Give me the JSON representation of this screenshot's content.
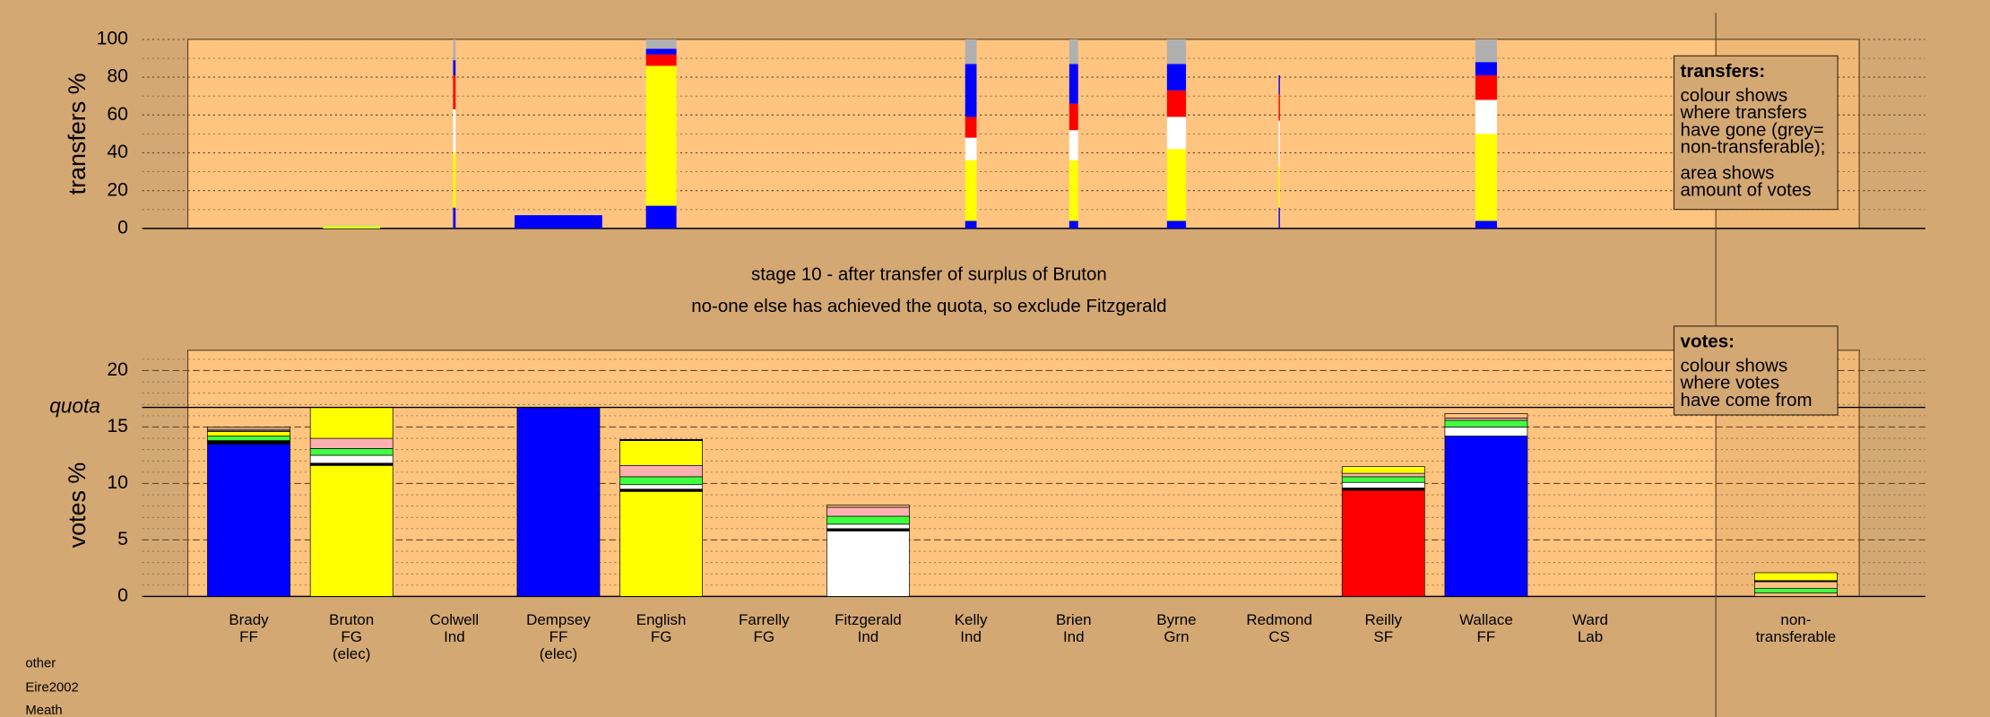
{
  "stage_title": "stage 10 - after transfer of surplus of Bruton",
  "stage_note": "no-one else has achieved the quota, so exclude Fitzgerald",
  "footer": [
    "other",
    "Eire2002",
    "Meath"
  ],
  "transfers_legend": {
    "title": "transfers:",
    "lines": [
      "colour shows",
      "where transfers",
      "have gone (grey=",
      "non-transferable);",
      "area shows",
      "amount of votes"
    ]
  },
  "votes_legend": {
    "title": "votes:",
    "lines": [
      "colour shows",
      "where votes",
      "have come from"
    ]
  },
  "chart_data": [
    {
      "type": "bar",
      "y_label": "transfers %",
      "ylim": [
        0,
        100
      ],
      "yticks": [
        0,
        20,
        40,
        60,
        80,
        100
      ],
      "minor_grid_step": 10,
      "stacks": [
        [],
        [
          {
            "color": "#ffff00",
            "value": 1
          },
          {
            "color": "#80ff80",
            "value": 0.5
          }
        ],
        [
          {
            "color": "#0000ff",
            "value": 11
          },
          {
            "color": "#ffff00",
            "value": 29
          },
          {
            "color": "#ffffff",
            "value": 23
          },
          {
            "color": "#ff0000",
            "value": 18
          },
          {
            "color": "#0000ff",
            "value": 8
          },
          {
            "color": "#b0b0b0",
            "value": 11
          }
        ],
        [
          {
            "color": "#0000ff",
            "value": 7
          }
        ],
        [
          {
            "color": "#0000ff",
            "value": 12
          },
          {
            "color": "#ffff00",
            "value": 74
          },
          {
            "color": "#ff0000",
            "value": 6
          },
          {
            "color": "#0000ff",
            "value": 3
          },
          {
            "color": "#b0b0b0",
            "value": 5
          }
        ],
        [],
        [],
        [
          {
            "color": "#0000ff",
            "value": 4
          },
          {
            "color": "#ffff00",
            "value": 32
          },
          {
            "color": "#ffffff",
            "value": 12
          },
          {
            "color": "#ff0000",
            "value": 11
          },
          {
            "color": "#0000ff",
            "value": 28
          },
          {
            "color": "#b0b0b0",
            "value": 13
          }
        ],
        [
          {
            "color": "#0000ff",
            "value": 4
          },
          {
            "color": "#ffff00",
            "value": 32
          },
          {
            "color": "#ffffff",
            "value": 16
          },
          {
            "color": "#ff0000",
            "value": 14
          },
          {
            "color": "#0000ff",
            "value": 21
          },
          {
            "color": "#b0b0b0",
            "value": 13
          }
        ],
        [
          {
            "color": "#0000ff",
            "value": 4
          },
          {
            "color": "#ffff00",
            "value": 38
          },
          {
            "color": "#ffffff",
            "value": 17
          },
          {
            "color": "#ff0000",
            "value": 14
          },
          {
            "color": "#0000ff",
            "value": 14
          },
          {
            "color": "#b0b0b0",
            "value": 13
          }
        ],
        [
          {
            "color": "#0000ff",
            "value": 11
          },
          {
            "color": "#ffff00",
            "value": 22
          },
          {
            "color": "#ffffff",
            "value": 24
          },
          {
            "color": "#ff0000",
            "value": 14
          },
          {
            "color": "#0000ff",
            "value": 10
          }
        ],
        [],
        [
          {
            "color": "#0000ff",
            "value": 4
          },
          {
            "color": "#ffff00",
            "value": 46
          },
          {
            "color": "#ffffff",
            "value": 18
          },
          {
            "color": "#ff0000",
            "value": 13
          },
          {
            "color": "#0000ff",
            "value": 7
          },
          {
            "color": "#b0b0b0",
            "value": 12
          }
        ],
        [],
        []
      ]
    },
    {
      "type": "bar",
      "y_label": "votes %",
      "ylim": [
        0,
        21.8
      ],
      "yticks": [
        0,
        5,
        10,
        15,
        20
      ],
      "minor_grid_step": 1,
      "quota": {
        "label": "quota",
        "value": 16.74
      },
      "categories": [
        [
          "Brady",
          "FF"
        ],
        [
          "Bruton",
          "FG",
          "(elec)"
        ],
        [
          "Colwell",
          "Ind"
        ],
        [
          "Dempsey",
          "FF",
          "(elec)"
        ],
        [
          "English",
          "FG"
        ],
        [
          "Farrelly",
          "FG"
        ],
        [
          "Fitzgerald",
          "Ind"
        ],
        [
          "Kelly",
          "Ind"
        ],
        [
          "Brien",
          "Ind"
        ],
        [
          "Byrne",
          "Grn"
        ],
        [
          "Redmond",
          "CS"
        ],
        [
          "Reilly",
          "SF"
        ],
        [
          "Wallace",
          "FF"
        ],
        [
          "Ward",
          "Lab"
        ],
        [
          "non-",
          "transferable"
        ]
      ],
      "stacks": [
        [
          {
            "color": "#0000ff",
            "value": 13.5
          },
          {
            "color": "#000000",
            "value": 0.3
          },
          {
            "color": "#40ff40",
            "value": 0.4
          },
          {
            "color": "#ffff00",
            "value": 0.4
          },
          {
            "color": "#ffb0b0",
            "value": 0.1
          },
          {
            "color": "#ffffff",
            "value": 0.1
          },
          {
            "color": "#ffc080",
            "value": 0.2
          }
        ],
        [
          {
            "color": "#ffff00",
            "value": 11.6
          },
          {
            "color": "#000000",
            "value": 0.2
          },
          {
            "color": "#ffffff",
            "value": 0.7
          },
          {
            "color": "#40ff40",
            "value": 0.6
          },
          {
            "color": "#ffb0b0",
            "value": 0.9
          },
          {
            "color": "#ffff00",
            "value": 2.74
          }
        ],
        [],
        [
          {
            "color": "#0000ff",
            "value": 16.74
          }
        ],
        [
          {
            "color": "#ffff00",
            "value": 9.3
          },
          {
            "color": "#000000",
            "value": 0.2
          },
          {
            "color": "#ffffff",
            "value": 0.4
          },
          {
            "color": "#40ff40",
            "value": 0.7
          },
          {
            "color": "#ffb0b0",
            "value": 1.0
          },
          {
            "color": "#ffff00",
            "value": 2.2
          },
          {
            "color": "#000000",
            "value": 0.1
          }
        ],
        [],
        [
          {
            "color": "#ffffff",
            "value": 5.8
          },
          {
            "color": "#000000",
            "value": 0.2
          },
          {
            "color": "#ffffff",
            "value": 0.4
          },
          {
            "color": "#40ff40",
            "value": 0.7
          },
          {
            "color": "#ffb0b0",
            "value": 0.8
          },
          {
            "color": "#ffc080",
            "value": 0.2
          }
        ],
        [],
        [],
        [],
        [],
        [
          {
            "color": "#ff0000",
            "value": 9.4
          },
          {
            "color": "#000000",
            "value": 0.2
          },
          {
            "color": "#ffffff",
            "value": 0.5
          },
          {
            "color": "#40ff40",
            "value": 0.5
          },
          {
            "color": "#ffb0b0",
            "value": 0.3
          },
          {
            "color": "#ffff00",
            "value": 0.6
          }
        ],
        [
          {
            "color": "#0000ff",
            "value": 14.2
          },
          {
            "color": "#ffffff",
            "value": 0.8
          },
          {
            "color": "#40ff40",
            "value": 0.6
          },
          {
            "color": "#ffb0b0",
            "value": 0.2
          },
          {
            "color": "#ffc080",
            "value": 0.4
          }
        ],
        [],
        [
          {
            "color": "#ffc080",
            "value": 0.3
          },
          {
            "color": "#40ff40",
            "value": 0.4
          },
          {
            "color": "#ffc080",
            "value": 0.6
          },
          {
            "color": "#000000",
            "value": 0.1
          },
          {
            "color": "#ffff00",
            "value": 0.7
          }
        ]
      ]
    }
  ]
}
